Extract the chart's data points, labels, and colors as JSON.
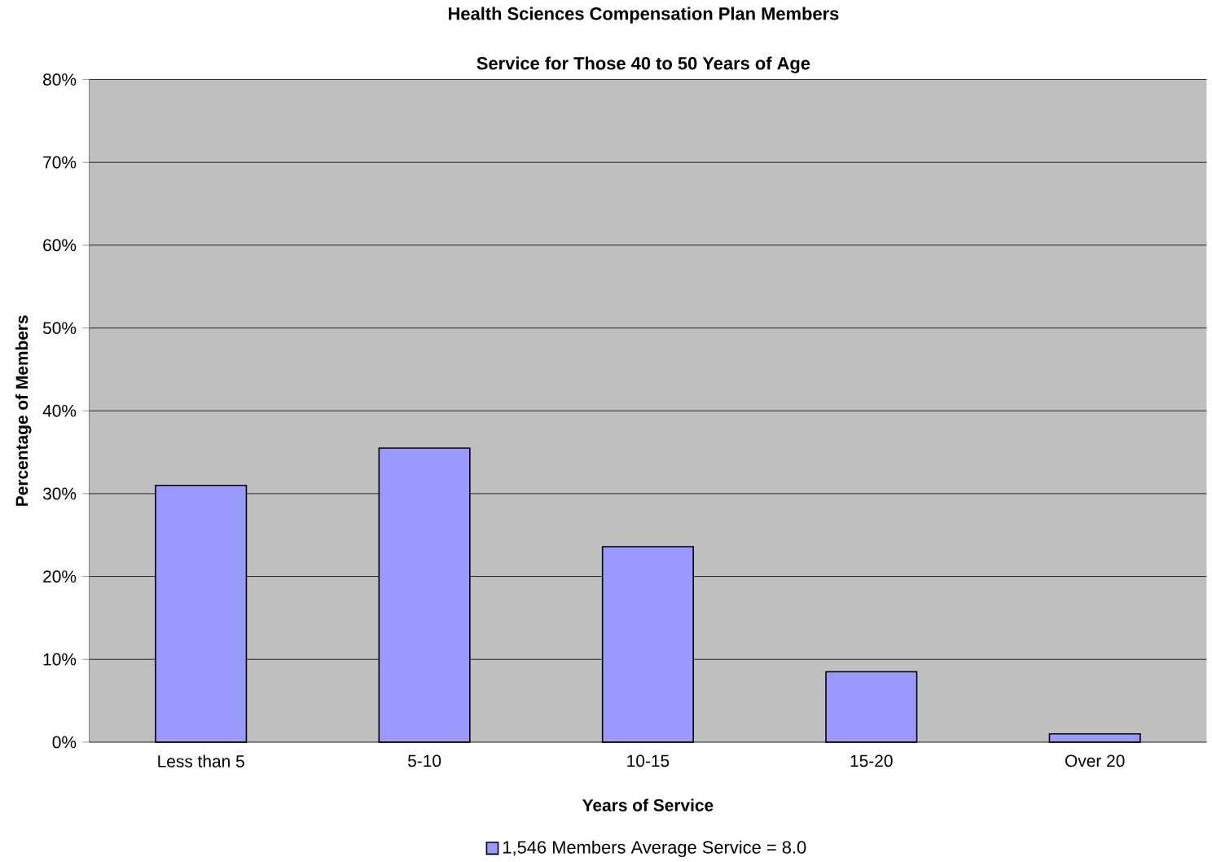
{
  "chart_data": {
    "type": "bar",
    "title": "Health Sciences Compensation Plan Members",
    "subtitle": "Service for Those 40 to 50 Years of Age",
    "xlabel": "Years of Service",
    "ylabel": "Percentage of Members",
    "categories": [
      "Less than 5",
      "5-10",
      "10-15",
      "15-20",
      "Over 20"
    ],
    "series": [
      {
        "name": "1,546 Members     Average Service = 8.0",
        "color": "#9999ff",
        "values": [
          31.0,
          35.5,
          23.6,
          8.5,
          1.0
        ]
      }
    ],
    "ylim": [
      0,
      80
    ],
    "yticks": [
      {
        "value": 0,
        "label": "0%"
      },
      {
        "value": 10,
        "label": "10%"
      },
      {
        "value": 20,
        "label": "20%"
      },
      {
        "value": 30,
        "label": "30%"
      },
      {
        "value": 40,
        "label": "40%"
      },
      {
        "value": 50,
        "label": "50%"
      },
      {
        "value": 60,
        "label": "60%"
      },
      {
        "value": 70,
        "label": "70%"
      },
      {
        "value": 80,
        "label": "80%"
      }
    ],
    "grid": "y",
    "legend": "bottom"
  }
}
